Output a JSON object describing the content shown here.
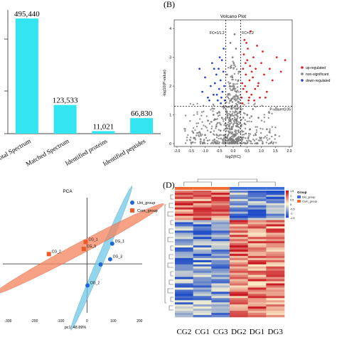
{
  "chart_data": [
    {
      "type": "bar",
      "categories": [
        "Total Spectrum",
        "Matched Spectrum",
        "Identified proteins",
        "Identified peptides"
      ],
      "values": [
        495440,
        123533,
        11021,
        66830
      ],
      "value_labels": [
        "495,440",
        "123,533",
        "11,021",
        "66,830"
      ],
      "color": "#33e5f0",
      "ylim": [
        0,
        520000
      ]
    },
    {
      "type": "scatter",
      "panel_label": "(B)",
      "title": "Volcano Plot",
      "xlabel": "log2(FC)",
      "ylabel": "-log10(P-value)",
      "xlim": [
        -2,
        2
      ],
      "ylim": [
        0,
        4.2
      ],
      "xticks": [
        -2.0,
        -1.5,
        -1.0,
        -0.5,
        0.0,
        0.5,
        1.0,
        1.5,
        2.0
      ],
      "xtick_labels": [
        "-2.0",
        "-1.5",
        "-1.0",
        "-0.5",
        "0.0",
        "0.5",
        "1.0",
        "1.5",
        "2.0"
      ],
      "yticks": [
        0,
        1,
        2,
        3,
        4
      ],
      "ytick_labels": [
        "0",
        "1",
        "2",
        "3",
        "4"
      ],
      "threshold_lines": [
        {
          "axis": "x",
          "value": -0.263,
          "label": "FC=1/1.2"
        },
        {
          "axis": "x",
          "value": 0.263,
          "label": "FC=1.2"
        },
        {
          "axis": "y",
          "value": 1.301,
          "label": "P-value=0.05"
        }
      ],
      "series": [
        {
          "name": "up-regulated",
          "color": "#e31a1c",
          "points": [
            [
              0.3,
              1.6
            ],
            [
              0.32,
              2.1
            ],
            [
              0.35,
              2.6
            ],
            [
              0.38,
              3.1
            ],
            [
              0.4,
              3.6
            ],
            [
              0.42,
              2.0
            ],
            [
              0.45,
              2.4
            ],
            [
              0.48,
              1.8
            ],
            [
              0.5,
              2.9
            ],
            [
              0.52,
              3.3
            ],
            [
              0.55,
              1.5
            ],
            [
              0.58,
              2.2
            ],
            [
              0.6,
              2.7
            ],
            [
              0.62,
              3.9
            ],
            [
              0.65,
              1.7
            ],
            [
              0.7,
              2.3
            ],
            [
              0.72,
              3.0
            ],
            [
              0.78,
              1.9
            ],
            [
              0.8,
              2.6
            ],
            [
              0.85,
              3.4
            ],
            [
              0.9,
              2.1
            ],
            [
              0.95,
              1.6
            ],
            [
              1.0,
              2.8
            ],
            [
              1.05,
              3.2
            ],
            [
              1.1,
              2.4
            ],
            [
              1.2,
              1.8
            ],
            [
              1.3,
              2.6
            ],
            [
              1.4,
              2.2
            ],
            [
              1.55,
              3.0
            ],
            [
              1.7,
              2.5
            ],
            [
              1.85,
              2.9
            ],
            [
              0.33,
              1.4
            ],
            [
              0.36,
              1.9
            ],
            [
              0.44,
              2.8
            ],
            [
              0.47,
              3.5
            ],
            [
              0.57,
              1.6
            ],
            [
              0.66,
              2.5
            ],
            [
              0.75,
              1.5
            ],
            [
              0.88,
              2.0
            ],
            [
              1.15,
              1.6
            ]
          ]
        },
        {
          "name": "non-significant",
          "color": "#7f7f7f",
          "points": [
            [
              0.0,
              0.1
            ],
            [
              0.05,
              0.3
            ],
            [
              -0.05,
              0.5
            ],
            [
              0.1,
              0.8
            ],
            [
              -0.1,
              1.0
            ],
            [
              0.15,
              1.2
            ],
            [
              -0.15,
              0.6
            ],
            [
              0.2,
              0.4
            ],
            [
              -0.2,
              0.9
            ],
            [
              0.25,
              1.1
            ],
            [
              -0.25,
              0.2
            ],
            [
              0.08,
              1.3
            ],
            [
              -0.08,
              1.5
            ],
            [
              0.12,
              1.8
            ],
            [
              -0.12,
              2.0
            ],
            [
              0.18,
              2.2
            ],
            [
              -0.18,
              1.7
            ],
            [
              0.22,
              2.5
            ],
            [
              -0.22,
              2.4
            ],
            [
              0.02,
              2.8
            ],
            [
              -0.02,
              3.0
            ],
            [
              0.1,
              3.3
            ],
            [
              -0.1,
              3.5
            ],
            [
              0.05,
              3.8
            ],
            [
              0.4,
              0.7
            ],
            [
              -0.4,
              0.9
            ],
            [
              0.6,
              0.5
            ],
            [
              -0.6,
              0.6
            ],
            [
              0.8,
              0.3
            ],
            [
              -0.8,
              0.4
            ],
            [
              1.0,
              0.2
            ],
            [
              -1.0,
              0.3
            ],
            [
              0.5,
              1.0
            ],
            [
              -0.5,
              1.1
            ],
            [
              0.3,
              0.2
            ],
            [
              -0.3,
              0.3
            ],
            [
              0.7,
              1.2
            ],
            [
              -0.7,
              1.0
            ],
            [
              1.2,
              0.5
            ],
            [
              -1.2,
              0.4
            ],
            [
              0.9,
              0.9
            ],
            [
              -0.9,
              0.8
            ],
            [
              0.14,
              0.05
            ],
            [
              -0.14,
              0.15
            ],
            [
              0.28,
              0.6
            ],
            [
              -0.28,
              0.7
            ],
            [
              1.5,
              0.3
            ],
            [
              -1.4,
              0.2
            ],
            [
              0.45,
              0.35
            ],
            [
              -0.45,
              0.45
            ],
            [
              0.65,
              0.95
            ],
            [
              -0.65,
              0.85
            ],
            [
              0.03,
              1.9
            ],
            [
              -0.03,
              2.3
            ]
          ]
        },
        {
          "name": "down-regulated",
          "color": "#1f3fd4",
          "points": [
            [
              -0.3,
              1.5
            ],
            [
              -0.32,
              2.0
            ],
            [
              -0.35,
              2.5
            ],
            [
              -0.38,
              1.8
            ],
            [
              -0.4,
              2.9
            ],
            [
              -0.42,
              1.6
            ],
            [
              -0.45,
              2.2
            ],
            [
              -0.48,
              3.0
            ],
            [
              -0.5,
              1.9
            ],
            [
              -0.52,
              2.6
            ],
            [
              -0.55,
              1.5
            ],
            [
              -0.6,
              2.4
            ],
            [
              -0.65,
              2.1
            ],
            [
              -0.7,
              1.7
            ],
            [
              -0.75,
              2.8
            ],
            [
              -0.8,
              2.0
            ],
            [
              -0.9,
              1.6
            ],
            [
              -1.0,
              2.3
            ],
            [
              -1.1,
              1.8
            ],
            [
              -1.2,
              2.6
            ],
            [
              -0.34,
              3.3
            ],
            [
              -0.44,
              1.4
            ],
            [
              -0.58,
              1.7
            ],
            [
              -0.68,
              2.6
            ],
            [
              -0.85,
              1.5
            ]
          ]
        }
      ]
    },
    {
      "type": "scatter",
      "title": "PCA",
      "xlabel": "pc1: 48.89%",
      "xlim": [
        -320,
        210
      ],
      "ylim": [
        -170,
        230
      ],
      "xticks": [
        -300,
        -200,
        -100,
        0,
        100,
        200
      ],
      "xtick_labels": [
        "-300",
        "-200",
        "-100",
        "0",
        "100",
        "200"
      ],
      "legend_position": "top-right",
      "series": [
        {
          "name": "Uni_group",
          "color": "#1f66d6",
          "ellipse_color": "#6fc8e8",
          "points": [
            [
              96,
              70
            ],
            [
              88,
              16
            ],
            [
              52,
              -2
            ],
            [
              2,
              -75
            ]
          ],
          "labels": [
            "DG_1",
            "DG_3",
            "",
            "DG_2"
          ]
        },
        {
          "name": "Com_group",
          "color": "#f05a28",
          "ellipse_color": "#f5845c",
          "points": [
            [
              -5,
              76
            ],
            [
              -12,
              52
            ],
            [
              -145,
              34
            ]
          ],
          "labels": [
            "CG_1",
            "CG_3",
            "CG_2"
          ]
        }
      ]
    },
    {
      "type": "heatmap",
      "panel_label": "(D)",
      "columns": [
        "CG2",
        "CG1",
        "CG3",
        "DG2",
        "DG1",
        "DG3"
      ],
      "legend_title": "Group",
      "legend_entries": [
        {
          "name": "DG_group",
          "color": "#3f6fd8"
        },
        {
          "name": "Com_group",
          "color": "#f06a36"
        }
      ],
      "color_scale": {
        "min": -1.5,
        "max": 1.5,
        "ticks": [
          "1.5",
          "1",
          "0.5",
          "0",
          "-0.5",
          "-1",
          "-1.5"
        ]
      },
      "column_groups": [
        "Com_group",
        "Com_group",
        "Com_group",
        "DG_group",
        "DG_group",
        "DG_group"
      ]
    }
  ]
}
